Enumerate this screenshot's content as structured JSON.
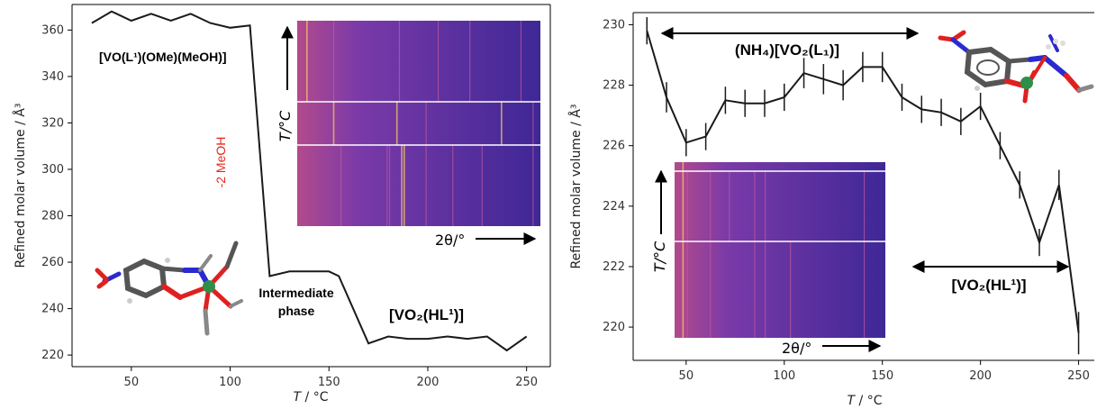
{
  "colors": {
    "line": "#1a1a1a",
    "meoh_annotation": "#e8261c",
    "heatmap_bg": "#5a2fa0",
    "heatmap_line_bright": "#f4c46a",
    "heatmap_line_mid": "#c85a9a",
    "separator": "#ffffff"
  },
  "chart_data": [
    {
      "type": "line",
      "panel": "left",
      "xlabel_var": "T",
      "xlabel_unit": " / °C",
      "ylabel": "Refined molar volume / Å³",
      "xlim": [
        20,
        262
      ],
      "ylim": [
        215,
        371
      ],
      "xticks": [
        50,
        100,
        150,
        200,
        250
      ],
      "yticks": [
        220,
        240,
        260,
        280,
        300,
        320,
        340,
        360
      ],
      "grid": false,
      "series": [
        {
          "x": [
            30,
            40,
            50,
            60,
            70,
            80,
            90,
            100,
            110,
            120,
            130,
            140,
            150,
            155,
            170,
            180,
            190,
            200,
            210,
            220,
            230,
            240,
            250
          ],
          "y": [
            363,
            368,
            364,
            367,
            364,
            367,
            363,
            361,
            362,
            254,
            256,
            256,
            256,
            254,
            225,
            228,
            227,
            227,
            228,
            227,
            228,
            222,
            228
          ]
        }
      ],
      "annotations": {
        "phase1": "[VO(L¹)(OMe)(MeOH)]",
        "loss": "-2 MeOH",
        "intermediate_line1": "Intermediate",
        "intermediate_line2": "phase",
        "phase2": "[VO₂(HL¹)]"
      },
      "inset": {
        "ylabel": "T/°C",
        "xlabel": "2θ/°",
        "separators": 2
      }
    },
    {
      "type": "line",
      "panel": "right",
      "xlabel_var": "T",
      "xlabel_unit": " / °C",
      "ylabel": "Refined molar volume / Å³",
      "xlim": [
        23,
        258
      ],
      "ylim": [
        218.9,
        230.4
      ],
      "xticks": [
        50,
        100,
        150,
        200,
        250
      ],
      "yticks": [
        220,
        222,
        224,
        226,
        228,
        230
      ],
      "grid": false,
      "error_bars": true,
      "series": [
        {
          "x": [
            30,
            40,
            50,
            60,
            70,
            80,
            90,
            100,
            110,
            120,
            130,
            140,
            150,
            160,
            170,
            180,
            190,
            200,
            210,
            220,
            230,
            240,
            250
          ],
          "y": [
            229.8,
            227.6,
            226.1,
            226.3,
            227.5,
            227.4,
            227.4,
            227.6,
            228.4,
            228.2,
            228.0,
            228.6,
            228.6,
            227.6,
            227.2,
            227.1,
            226.8,
            227.3,
            226.0,
            224.7,
            222.8,
            224.7,
            219.8
          ],
          "yerr": [
            0.45,
            0.5,
            0.45,
            0.45,
            0.45,
            0.45,
            0.45,
            0.45,
            0.5,
            0.5,
            0.5,
            0.5,
            0.5,
            0.45,
            0.45,
            0.45,
            0.45,
            0.45,
            0.45,
            0.45,
            0.45,
            0.5,
            0.7
          ]
        }
      ],
      "annotations": {
        "phase1": "(NH₄)[VO₂(L₁)]",
        "phase2": "[VO₂(HL¹)]"
      },
      "inset": {
        "ylabel": "T/°C",
        "xlabel": "2θ/°",
        "separators": 2
      }
    }
  ]
}
